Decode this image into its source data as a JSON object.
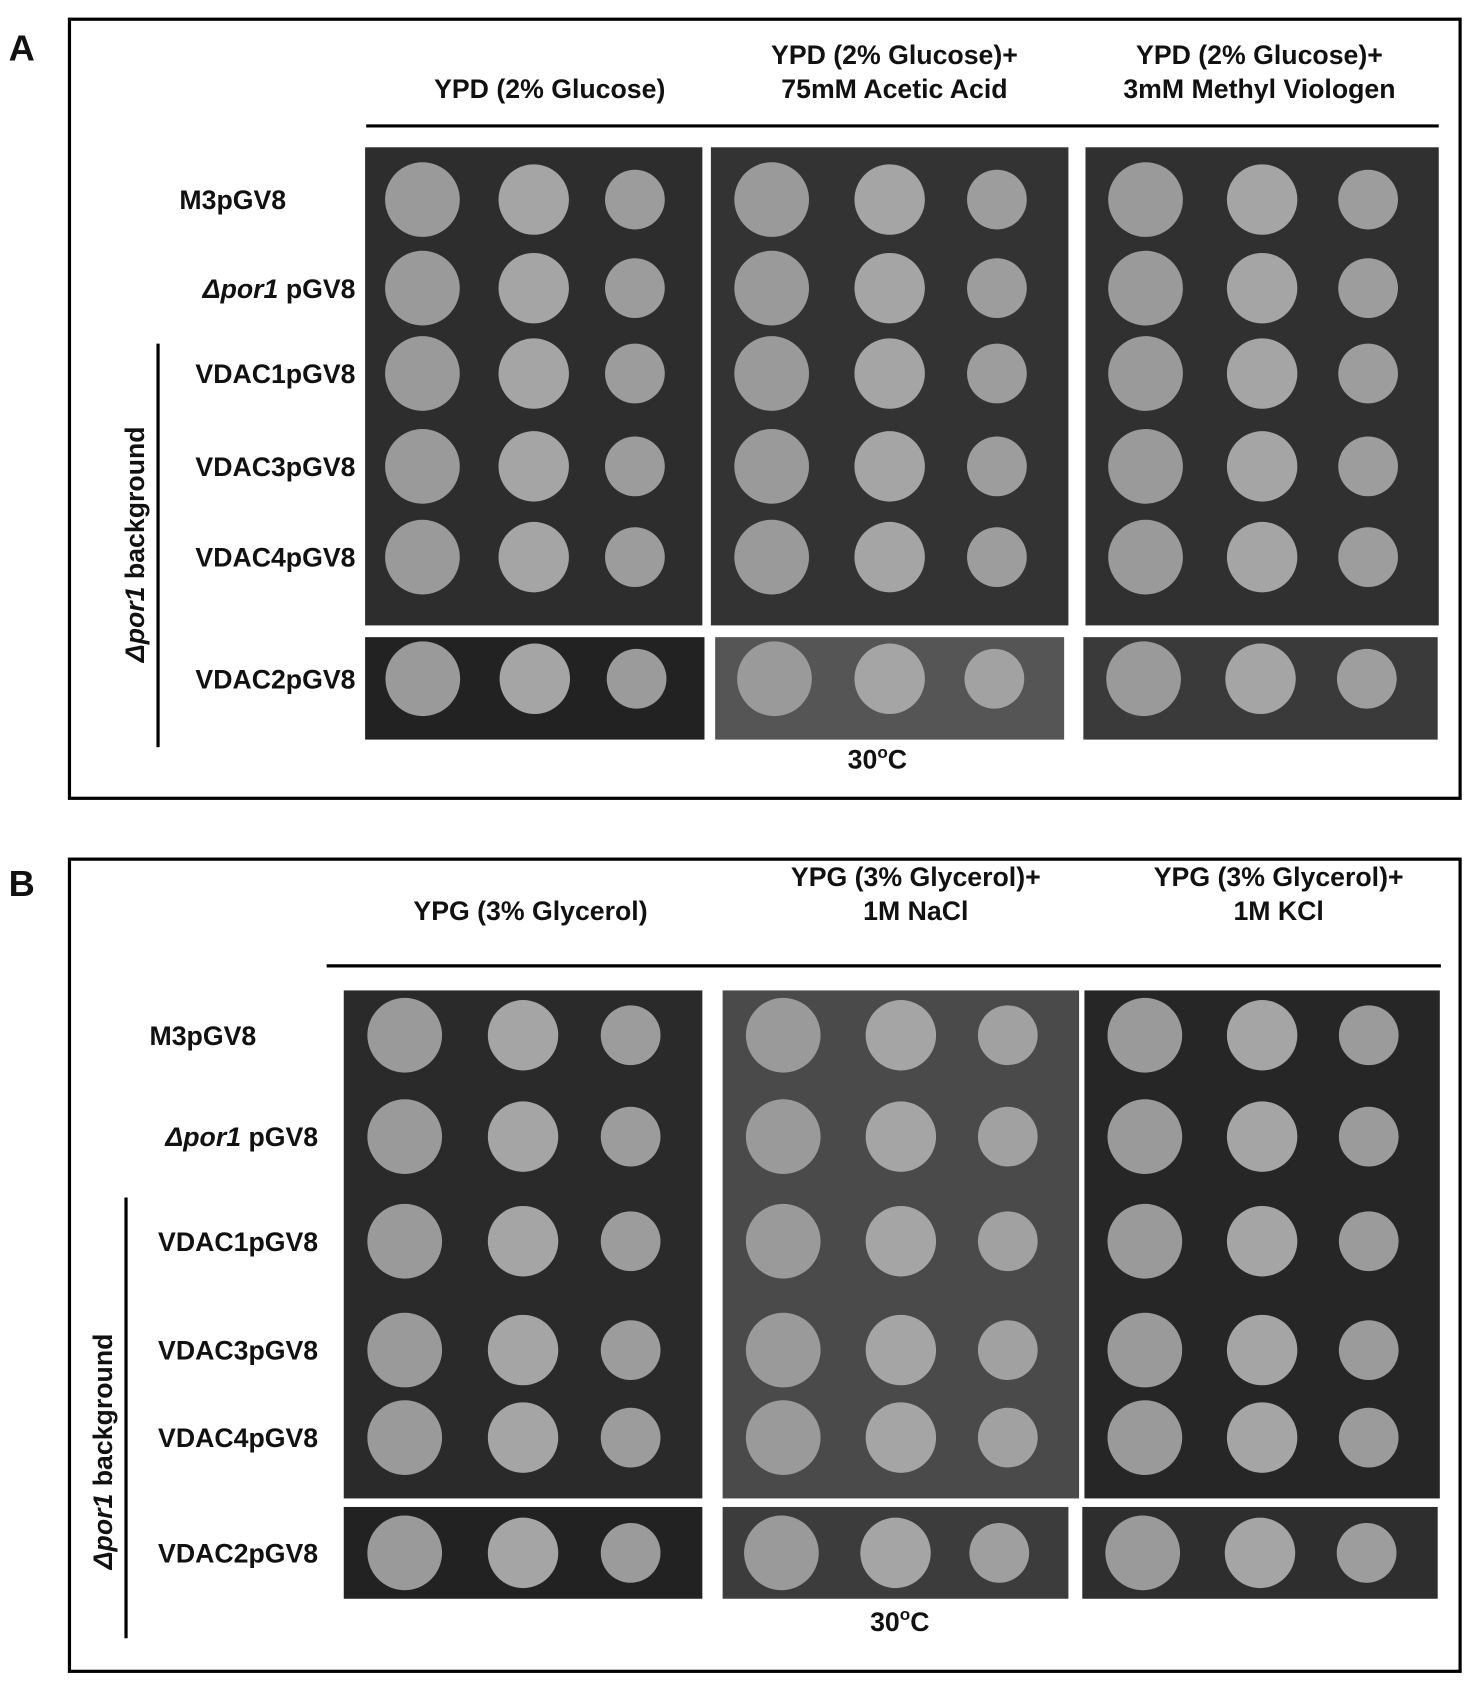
{
  "panels": [
    {
      "label": "A",
      "columns": [
        [
          "YPD (2% Glucose)"
        ],
        [
          "YPD (2% Glucose)+",
          "75mM Acetic Acid"
        ],
        [
          "YPD (2% Glucose)+",
          "3mM Methyl Viologen"
        ]
      ],
      "rows": [
        "M3pGV8",
        {
          "italic": "Δpor1",
          "text": " pGV8"
        },
        "VDAC1pGV8",
        "VDAC3pGV8",
        "VDAC4pGV8",
        "VDAC2pGV8"
      ],
      "group_label": {
        "italic": "Δpor1",
        "text": " background"
      },
      "temperature": {
        "value": "30",
        "sup": "o",
        "unit": "C"
      }
    },
    {
      "label": "B",
      "columns": [
        [
          "YPG (3% Glycerol)"
        ],
        [
          "YPG (3% Glycerol)+",
          "1M NaCl"
        ],
        [
          "YPG (3% Glycerol)+",
          "1M KCl"
        ]
      ],
      "rows": [
        "M3pGV8",
        {
          "italic": "Δpor1",
          "text": " pGV8"
        },
        "VDAC1pGV8",
        "VDAC3pGV8",
        "VDAC4pGV8",
        "VDAC2pGV8"
      ],
      "group_label": {
        "italic": "Δpor1",
        "text": " background"
      },
      "temperature": {
        "value": "30",
        "sup": "o",
        "unit": "C"
      }
    }
  ]
}
